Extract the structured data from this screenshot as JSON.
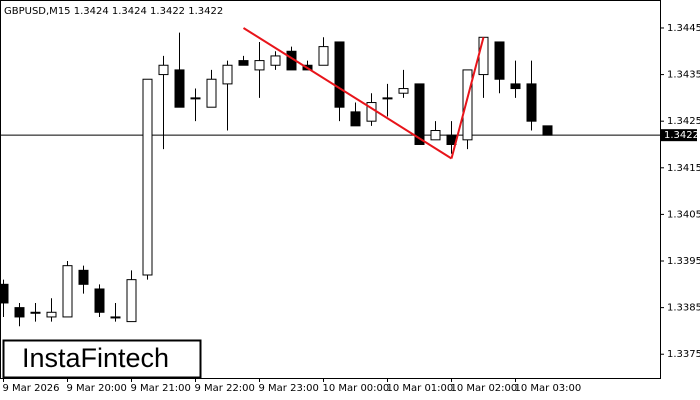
{
  "chart_data": {
    "type": "candlestick",
    "title": "GBPUSD,M15  1.3424 1.3424 1.3422 1.3422",
    "categories": [
      "9 Mar 2026",
      null,
      null,
      null,
      "9 Mar 20:00",
      null,
      null,
      null,
      "9 Mar 21:00",
      null,
      null,
      null,
      "9 Mar 22:00",
      null,
      null,
      null,
      "9 Mar 23:00",
      null,
      null,
      null,
      "10 Mar 00:00",
      null,
      null,
      null,
      "10 Mar 01:00",
      null,
      null,
      null,
      "10 Mar 02:00",
      null,
      null,
      null,
      "10 Mar 03:00",
      null,
      null
    ],
    "open": [
      1.339,
      1.3385,
      1.3384,
      1.3383,
      1.3383,
      1.3393,
      1.3389,
      1.3383,
      1.3382,
      1.3392,
      1.3435,
      1.3436,
      1.343,
      1.3428,
      1.3433,
      1.3438,
      1.3436,
      1.3437,
      1.344,
      1.3437,
      1.3437,
      1.3442,
      1.3427,
      1.3425,
      1.343,
      1.3431,
      1.3433,
      1.3421,
      1.3422,
      1.3421,
      1.3435,
      1.3442,
      1.3433,
      1.3433,
      1.3424
    ],
    "high": [
      1.3391,
      1.3386,
      1.3386,
      1.3387,
      1.3395,
      1.3394,
      1.339,
      1.3386,
      1.3393,
      1.3434,
      1.3439,
      1.3444,
      1.3432,
      1.3436,
      1.3438,
      1.3439,
      1.3442,
      1.344,
      1.3441,
      1.3438,
      1.3443,
      1.3442,
      1.3429,
      1.3431,
      1.3433,
      1.3436,
      1.3433,
      1.3425,
      1.3425,
      1.3436,
      1.3443,
      1.3442,
      1.3438,
      1.3438,
      1.3424
    ],
    "low": [
      1.3383,
      1.3381,
      1.3382,
      1.3382,
      1.3383,
      1.3388,
      1.3383,
      1.3382,
      1.3382,
      1.3391,
      1.3419,
      1.3428,
      1.3425,
      1.3428,
      1.3423,
      1.3437,
      1.343,
      1.3436,
      1.3436,
      1.3436,
      1.3437,
      1.3425,
      1.3424,
      1.3424,
      1.3426,
      1.343,
      1.342,
      1.3421,
      1.3418,
      1.3419,
      1.343,
      1.3431,
      1.343,
      1.3423,
      1.3422
    ],
    "close": [
      1.3386,
      1.3383,
      1.3384,
      1.3384,
      1.3394,
      1.339,
      1.3384,
      1.3383,
      1.3391,
      1.3434,
      1.3437,
      1.3428,
      1.343,
      1.3434,
      1.3437,
      1.3437,
      1.3438,
      1.3439,
      1.3436,
      1.3436,
      1.3441,
      1.3428,
      1.3424,
      1.3429,
      1.343,
      1.3432,
      1.342,
      1.3423,
      1.342,
      1.3436,
      1.3443,
      1.3434,
      1.3432,
      1.3425,
      1.3422
    ],
    "up_color": "#ffffff",
    "down_color": "#000000",
    "ylim": [
      1.33699,
      1.3451
    ],
    "yticks": [
      1.3375,
      1.3385,
      1.3395,
      1.3405,
      1.3415,
      1.3425,
      1.3435,
      1.3445
    ],
    "last_price": 1.3422,
    "pattern": {
      "color": "#e8141a",
      "points": [
        [
          15,
          1.3445
        ],
        [
          28,
          1.3417
        ],
        [
          30,
          1.3443
        ]
      ]
    }
  },
  "logo": "InstaFintech"
}
